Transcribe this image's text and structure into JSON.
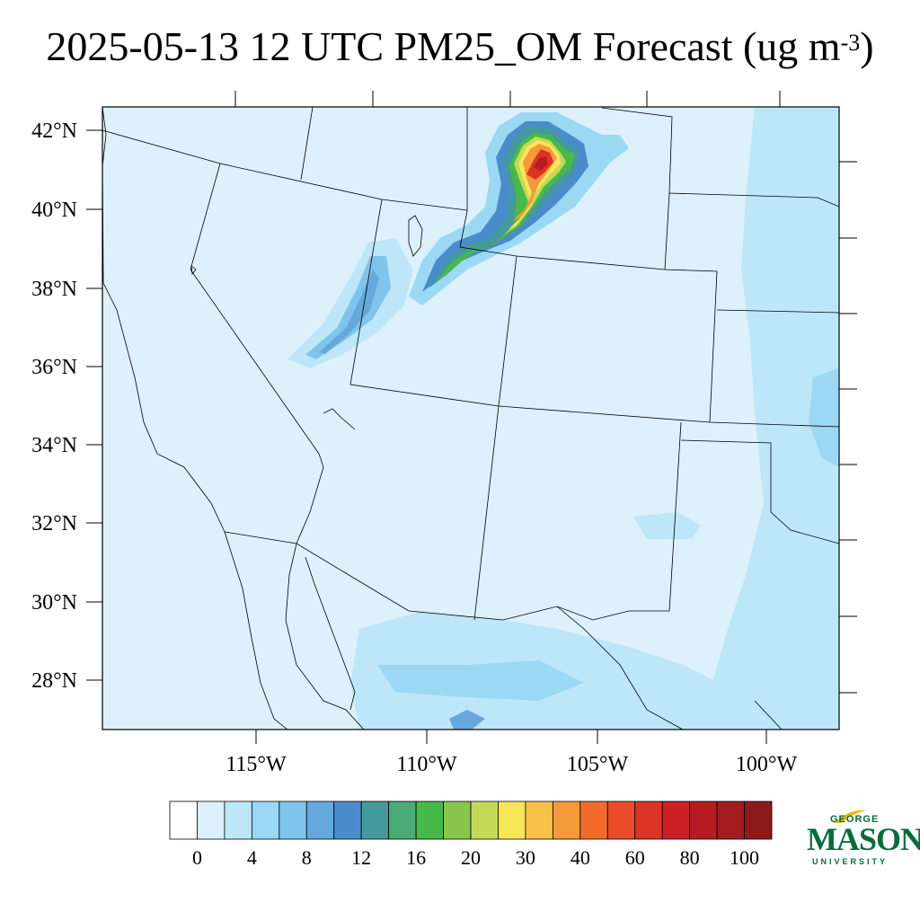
{
  "title": {
    "main": "2025-05-13 12 UTC PM25_OM Forecast (ug m",
    "exponent": "-3",
    "close": ")"
  },
  "map": {
    "lat_labels": [
      "42°N",
      "40°N",
      "38°N",
      "36°N",
      "34°N",
      "32°N",
      "30°N",
      "28°N"
    ],
    "lon_labels": [
      "115°W",
      "110°W",
      "105°W",
      "100°W"
    ],
    "background_color": "#dcf1fb",
    "coastline_color": "#000000"
  },
  "colorbar": {
    "labels": [
      "0",
      "4",
      "8",
      "12",
      "16",
      "20",
      "30",
      "40",
      "60",
      "80",
      "100"
    ],
    "colors": [
      "#ffffff",
      "#dcf1fb",
      "#bde6f8",
      "#9bd8f3",
      "#7fc4ec",
      "#66a8dc",
      "#4a8bcb",
      "#449a9a",
      "#4aab74",
      "#47b949",
      "#8ac54e",
      "#c4d957",
      "#f8e659",
      "#f7c048",
      "#f49a3a",
      "#f06b2a",
      "#e94c29",
      "#dc3327",
      "#cc2027",
      "#b71c23",
      "#a51c20",
      "#8f1a1c"
    ]
  },
  "logo": {
    "line1": "GEORGE",
    "line2": "MASON",
    "line3": "UNIVERSITY"
  }
}
